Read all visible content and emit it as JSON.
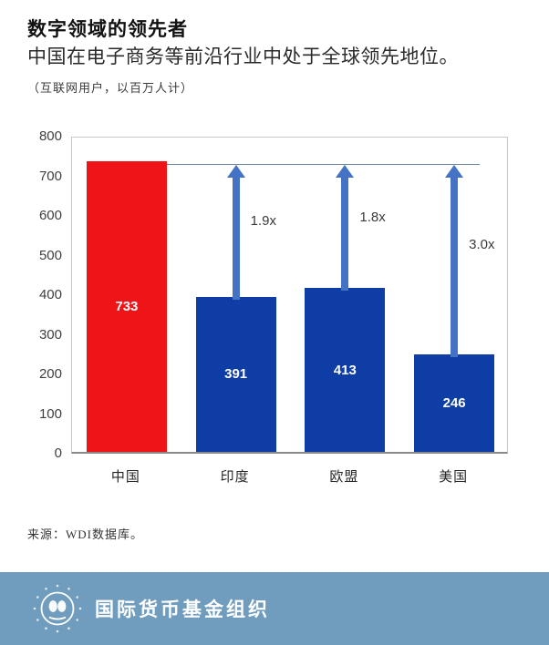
{
  "header": {
    "title": "数字领域的领先者",
    "subtitle": "中国在电子商务等前沿行业中处于全球领先地位。",
    "note": "（互联网用户，以百万人计）"
  },
  "chart_data": {
    "type": "bar",
    "title": "数字领域的领先者",
    "subtitle": "中国在电子商务等前沿行业中处于全球领先地位。",
    "ylabel": "互联网用户，以百万人计",
    "xlabel": "",
    "categories": [
      "中国",
      "印度",
      "欧盟",
      "美国"
    ],
    "values": [
      733,
      391,
      413,
      246
    ],
    "bar_colors": [
      "#ee1418",
      "#0d3da5",
      "#0d3da5",
      "#0d3da5"
    ],
    "value_label_color": "#ffffff",
    "multipliers": [
      null,
      "1.9x",
      "1.8x",
      "3.0x"
    ],
    "reference_value": 733,
    "reference_line_color": "#6d88a3",
    "arrow_color": "#4472c4",
    "ylim": [
      0,
      800
    ],
    "yticks": [
      800,
      700,
      600,
      500,
      400,
      300,
      200,
      100,
      0
    ],
    "grid": "off",
    "legend": "none"
  },
  "source": "来源：WDI数据库。",
  "footer": {
    "org_name": "国际货币基金组织",
    "background": "#709cbd"
  }
}
